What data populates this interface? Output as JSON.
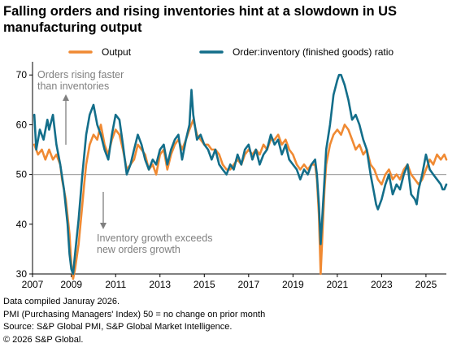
{
  "title": "Falling orders and rising inventories hint at a slowdown in US manufacturing output",
  "footer": {
    "line1": "Data compiled Januray 2026.",
    "line2": "PMI (Purchasing Managers' Index) 50 = no change on prior month",
    "line3": "Source: S&P Global PMI, S&P Global Market Intelligence.",
    "line4": "© 2026 S&P Global."
  },
  "colors": {
    "output": "#F08A33",
    "ratio": "#136E8A",
    "reference": "#A6A6A6",
    "annotation": "#7F7F7F"
  },
  "chart_data": {
    "type": "line",
    "xlim": [
      2007.25,
      2025.92
    ],
    "ylim": [
      30,
      72
    ],
    "x_ticks": [
      "2007",
      "2009",
      "2011",
      "2013",
      "2015",
      "2017",
      "2019",
      "2021",
      "2023",
      "2025"
    ],
    "y_ticks": [
      "30",
      "40",
      "50",
      "60",
      "70"
    ],
    "reference_line": 50,
    "legend_position": "top",
    "annotations": [
      {
        "line1": "Orders rising faster",
        "line2": "than inventories"
      },
      {
        "line1": "Inventory growth exceeds",
        "line2": "new orders growth"
      }
    ],
    "series": [
      {
        "name": "Output",
        "points": [
          [
            2007.33,
            56
          ],
          [
            2007.5,
            54
          ],
          [
            2007.67,
            55
          ],
          [
            2007.83,
            53
          ],
          [
            2008.0,
            55
          ],
          [
            2008.17,
            53
          ],
          [
            2008.33,
            54
          ],
          [
            2008.5,
            52
          ],
          [
            2008.58,
            49
          ],
          [
            2008.75,
            45
          ],
          [
            2008.92,
            38
          ],
          [
            2009.0,
            32
          ],
          [
            2009.08,
            29
          ],
          [
            2009.17,
            31
          ],
          [
            2009.33,
            36
          ],
          [
            2009.5,
            44
          ],
          [
            2009.58,
            48
          ],
          [
            2009.67,
            52
          ],
          [
            2009.83,
            56
          ],
          [
            2010.0,
            58
          ],
          [
            2010.17,
            57
          ],
          [
            2010.33,
            60
          ],
          [
            2010.5,
            56
          ],
          [
            2010.67,
            54
          ],
          [
            2010.83,
            57
          ],
          [
            2011.0,
            59
          ],
          [
            2011.17,
            58
          ],
          [
            2011.33,
            55
          ],
          [
            2011.5,
            51
          ],
          [
            2011.67,
            52
          ],
          [
            2011.83,
            53
          ],
          [
            2012.0,
            56
          ],
          [
            2012.17,
            55
          ],
          [
            2012.33,
            54
          ],
          [
            2012.5,
            51
          ],
          [
            2012.67,
            52
          ],
          [
            2012.83,
            50
          ],
          [
            2013.0,
            54
          ],
          [
            2013.17,
            55
          ],
          [
            2013.33,
            51
          ],
          [
            2013.5,
            54
          ],
          [
            2013.67,
            56
          ],
          [
            2013.83,
            57
          ],
          [
            2014.0,
            55
          ],
          [
            2014.17,
            57
          ],
          [
            2014.33,
            59
          ],
          [
            2014.5,
            61
          ],
          [
            2014.67,
            58
          ],
          [
            2014.83,
            57
          ],
          [
            2015.0,
            56
          ],
          [
            2015.17,
            56
          ],
          [
            2015.33,
            55
          ],
          [
            2015.5,
            55
          ],
          [
            2015.67,
            54
          ],
          [
            2015.83,
            52
          ],
          [
            2016.0,
            51
          ],
          [
            2016.17,
            51
          ],
          [
            2016.33,
            52
          ],
          [
            2016.5,
            53
          ],
          [
            2016.67,
            52
          ],
          [
            2016.83,
            54
          ],
          [
            2017.0,
            55
          ],
          [
            2017.17,
            54
          ],
          [
            2017.33,
            55
          ],
          [
            2017.5,
            54
          ],
          [
            2017.67,
            56
          ],
          [
            2017.83,
            55
          ],
          [
            2018.0,
            57
          ],
          [
            2018.17,
            57
          ],
          [
            2018.33,
            58
          ],
          [
            2018.5,
            56
          ],
          [
            2018.67,
            57
          ],
          [
            2018.83,
            55
          ],
          [
            2019.0,
            54
          ],
          [
            2019.17,
            52
          ],
          [
            2019.33,
            51
          ],
          [
            2019.5,
            52
          ],
          [
            2019.67,
            51
          ],
          [
            2019.83,
            52
          ],
          [
            2020.0,
            52
          ],
          [
            2020.08,
            49
          ],
          [
            2020.17,
            42
          ],
          [
            2020.25,
            30
          ],
          [
            2020.33,
            38
          ],
          [
            2020.42,
            47
          ],
          [
            2020.5,
            52
          ],
          [
            2020.67,
            56
          ],
          [
            2020.83,
            58
          ],
          [
            2021.0,
            59
          ],
          [
            2021.17,
            58
          ],
          [
            2021.33,
            60
          ],
          [
            2021.5,
            59
          ],
          [
            2021.67,
            57
          ],
          [
            2021.83,
            55
          ],
          [
            2022.0,
            56
          ],
          [
            2022.17,
            54
          ],
          [
            2022.33,
            55
          ],
          [
            2022.5,
            52
          ],
          [
            2022.67,
            51
          ],
          [
            2022.83,
            49
          ],
          [
            2023.0,
            48
          ],
          [
            2023.17,
            50
          ],
          [
            2023.33,
            51
          ],
          [
            2023.5,
            49
          ],
          [
            2023.67,
            50
          ],
          [
            2023.83,
            49
          ],
          [
            2024.0,
            51
          ],
          [
            2024.17,
            52
          ],
          [
            2024.33,
            50
          ],
          [
            2024.5,
            49
          ],
          [
            2024.67,
            48
          ],
          [
            2024.83,
            49
          ],
          [
            2025.0,
            51
          ],
          [
            2025.17,
            53
          ],
          [
            2025.33,
            52
          ],
          [
            2025.5,
            54
          ],
          [
            2025.67,
            53
          ],
          [
            2025.83,
            54
          ],
          [
            2025.92,
            53
          ]
        ]
      },
      {
        "name": "Order:inventory (finished goods) ratio",
        "points": [
          [
            2007.33,
            62
          ],
          [
            2007.42,
            55
          ],
          [
            2007.58,
            59
          ],
          [
            2007.75,
            57
          ],
          [
            2007.92,
            61
          ],
          [
            2008.0,
            59
          ],
          [
            2008.17,
            62
          ],
          [
            2008.33,
            56
          ],
          [
            2008.5,
            52
          ],
          [
            2008.67,
            47
          ],
          [
            2008.83,
            40
          ],
          [
            2008.92,
            34
          ],
          [
            2009.0,
            31
          ],
          [
            2009.08,
            30
          ],
          [
            2009.17,
            34
          ],
          [
            2009.33,
            41
          ],
          [
            2009.5,
            50
          ],
          [
            2009.67,
            58
          ],
          [
            2009.83,
            62
          ],
          [
            2010.0,
            64
          ],
          [
            2010.17,
            60
          ],
          [
            2010.33,
            58
          ],
          [
            2010.5,
            55
          ],
          [
            2010.67,
            53
          ],
          [
            2010.83,
            58
          ],
          [
            2011.0,
            62
          ],
          [
            2011.17,
            61
          ],
          [
            2011.33,
            56
          ],
          [
            2011.5,
            50
          ],
          [
            2011.67,
            52
          ],
          [
            2011.83,
            55
          ],
          [
            2012.0,
            58
          ],
          [
            2012.17,
            56
          ],
          [
            2012.33,
            53
          ],
          [
            2012.5,
            51
          ],
          [
            2012.67,
            53
          ],
          [
            2012.83,
            52
          ],
          [
            2013.0,
            55
          ],
          [
            2013.17,
            56
          ],
          [
            2013.33,
            52
          ],
          [
            2013.5,
            55
          ],
          [
            2013.67,
            57
          ],
          [
            2013.83,
            58
          ],
          [
            2014.0,
            53
          ],
          [
            2014.17,
            57
          ],
          [
            2014.33,
            60
          ],
          [
            2014.42,
            67
          ],
          [
            2014.5,
            62
          ],
          [
            2014.67,
            57
          ],
          [
            2014.83,
            58
          ],
          [
            2015.0,
            56
          ],
          [
            2015.17,
            55
          ],
          [
            2015.33,
            53
          ],
          [
            2015.5,
            55
          ],
          [
            2015.67,
            52
          ],
          [
            2015.83,
            51
          ],
          [
            2016.0,
            50
          ],
          [
            2016.17,
            52
          ],
          [
            2016.33,
            51
          ],
          [
            2016.5,
            54
          ],
          [
            2016.67,
            52
          ],
          [
            2016.83,
            55
          ],
          [
            2017.0,
            56
          ],
          [
            2017.17,
            53
          ],
          [
            2017.33,
            55
          ],
          [
            2017.5,
            52
          ],
          [
            2017.67,
            54
          ],
          [
            2017.83,
            55
          ],
          [
            2018.0,
            58
          ],
          [
            2018.17,
            56
          ],
          [
            2018.33,
            57
          ],
          [
            2018.5,
            54
          ],
          [
            2018.67,
            56
          ],
          [
            2018.83,
            53
          ],
          [
            2019.0,
            52
          ],
          [
            2019.17,
            51
          ],
          [
            2019.33,
            49
          ],
          [
            2019.5,
            51
          ],
          [
            2019.67,
            50
          ],
          [
            2019.83,
            52
          ],
          [
            2020.0,
            53
          ],
          [
            2020.08,
            50
          ],
          [
            2020.17,
            44
          ],
          [
            2020.25,
            36
          ],
          [
            2020.33,
            42
          ],
          [
            2020.42,
            49
          ],
          [
            2020.5,
            55
          ],
          [
            2020.67,
            60
          ],
          [
            2020.83,
            66
          ],
          [
            2021.0,
            69
          ],
          [
            2021.08,
            70
          ],
          [
            2021.17,
            70
          ],
          [
            2021.33,
            68
          ],
          [
            2021.5,
            65
          ],
          [
            2021.67,
            61
          ],
          [
            2021.83,
            62
          ],
          [
            2022.0,
            60
          ],
          [
            2022.17,
            57
          ],
          [
            2022.33,
            55
          ],
          [
            2022.5,
            50
          ],
          [
            2022.67,
            46
          ],
          [
            2022.75,
            44
          ],
          [
            2022.83,
            43
          ],
          [
            2023.0,
            45
          ],
          [
            2023.17,
            48
          ],
          [
            2023.33,
            50
          ],
          [
            2023.5,
            46
          ],
          [
            2023.67,
            48
          ],
          [
            2023.83,
            47
          ],
          [
            2024.0,
            50
          ],
          [
            2024.17,
            52
          ],
          [
            2024.33,
            46
          ],
          [
            2024.5,
            45
          ],
          [
            2024.58,
            44
          ],
          [
            2024.67,
            47
          ],
          [
            2024.83,
            50
          ],
          [
            2025.0,
            54
          ],
          [
            2025.17,
            51
          ],
          [
            2025.33,
            50
          ],
          [
            2025.5,
            49
          ],
          [
            2025.67,
            48
          ],
          [
            2025.75,
            47
          ],
          [
            2025.83,
            47
          ],
          [
            2025.92,
            48
          ]
        ]
      }
    ]
  }
}
